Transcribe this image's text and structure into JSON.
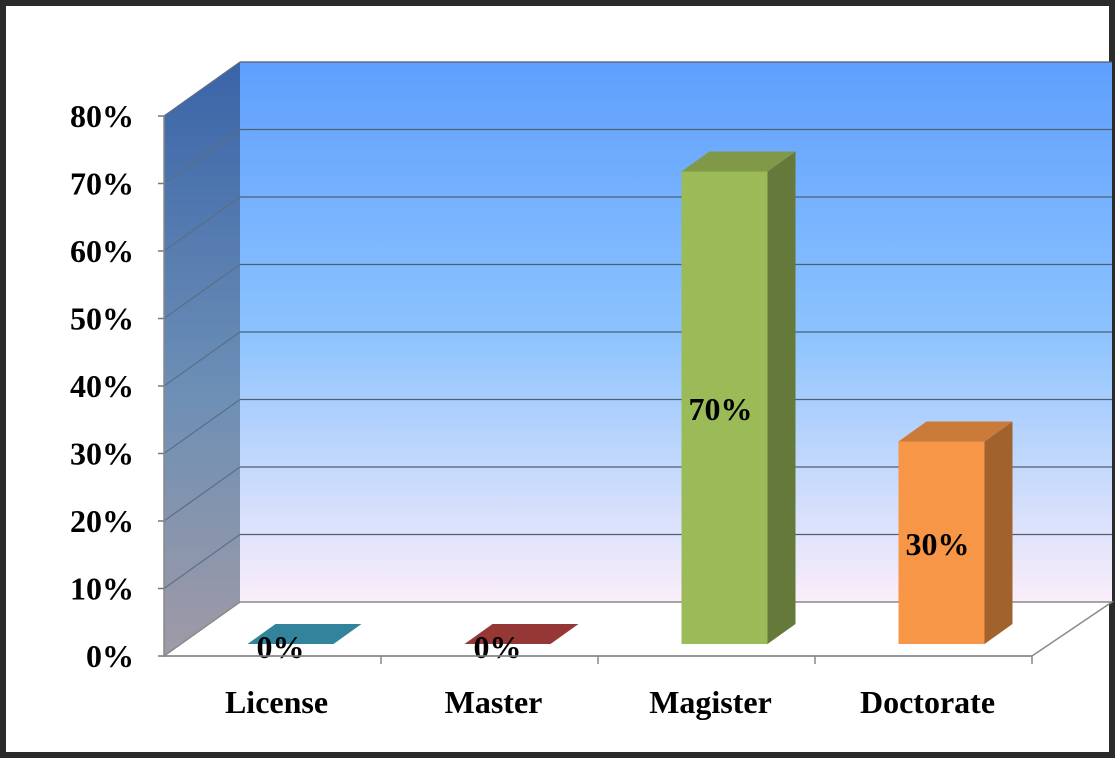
{
  "chart_data": {
    "type": "bar",
    "categories": [
      "License",
      "Master",
      "Magister",
      "Doctorate"
    ],
    "values": [
      0,
      0,
      70,
      30
    ],
    "data_labels": [
      "0%",
      "0%",
      "70%",
      "30%"
    ],
    "y_ticks": [
      "0%",
      "10%",
      "20%",
      "30%",
      "40%",
      "50%",
      "60%",
      "70%",
      "80%"
    ],
    "ylim": [
      0,
      80
    ],
    "grid": true,
    "legend": "none",
    "style": "3d-column",
    "colors": {
      "License": "#31849b",
      "Master": "#953735",
      "Magister": "#9bbb59",
      "Doctorate": "#f79646"
    }
  }
}
